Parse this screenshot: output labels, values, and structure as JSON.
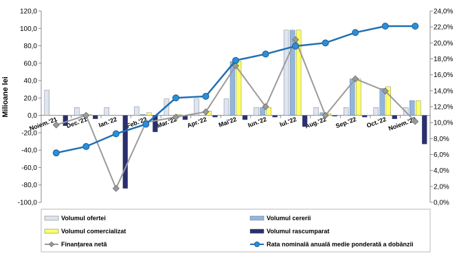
{
  "chart_data": {
    "type": "bar",
    "ylabel": "Milioane lei",
    "categories": [
      "Noiem.'21",
      "Dec.'21",
      "Ian.'22",
      "Feb.'22",
      "Mar.'22",
      "Apr.'22",
      "Mai'22",
      "Iun.'22",
      "Iul.'22",
      "Aug.'22",
      "Sep.'22",
      "Oct.'22",
      "Noiem.'22"
    ],
    "ylim": [
      -100,
      120
    ],
    "y_ticks": [
      "-100,0",
      "-80,0",
      "-60,0",
      "-40,0",
      "-20,0",
      "0,0",
      "20,0",
      "40,0",
      "60,0",
      "80,0",
      "100,0",
      "120,0"
    ],
    "y2lim": [
      0,
      24
    ],
    "y2_ticks": [
      "0,0%",
      "2,0%",
      "4,0%",
      "6,0%",
      "8,0%",
      "10,0%",
      "12,0%",
      "14,0%",
      "16,0%",
      "18,0%",
      "20,0%",
      "22,0%",
      "24,0%"
    ],
    "series": [
      {
        "name": "Volumul ofertei",
        "kind": "bar",
        "color": "#dfe4ee",
        "values": [
          29,
          9,
          9,
          10,
          19,
          19,
          19,
          9,
          98,
          9,
          9,
          9,
          9
        ]
      },
      {
        "name": "Volumul cererii",
        "kind": "bar",
        "color": "#93b6dd",
        "values": [
          0,
          1,
          0,
          1,
          0,
          0,
          62,
          9,
          98,
          3,
          42,
          31,
          17
        ]
      },
      {
        "name": "Volumul comercializat",
        "kind": "bar",
        "color": "#ffff66",
        "values": [
          0,
          1,
          0,
          3,
          1,
          5,
          62,
          9,
          98,
          2,
          42,
          33,
          17
        ]
      },
      {
        "name": "Volumul rascumparat",
        "kind": "bar",
        "color": "#2a2f6f",
        "values": [
          -12,
          -4,
          -84,
          -19,
          -5,
          -2,
          -5,
          -2,
          -13,
          -1,
          -2,
          -4,
          -33
        ]
      },
      {
        "name": "Finanțarea netă",
        "kind": "line",
        "axis": "left",
        "color": "#9a9a9a",
        "values": [
          -11,
          0,
          -84,
          -8,
          -2,
          4,
          57,
          10,
          87,
          0,
          42,
          28,
          -7
        ]
      },
      {
        "name": "Rata nominală anuală medie ponderată a dobânzii",
        "kind": "line",
        "axis": "right",
        "color": "#1f6fb4",
        "values": [
          6.2,
          7.0,
          8.6,
          9.8,
          13.1,
          13.3,
          17.8,
          18.6,
          19.6,
          20.0,
          21.3,
          22.1,
          22.1
        ]
      }
    ],
    "legend_position": "bottom",
    "grid": false
  }
}
